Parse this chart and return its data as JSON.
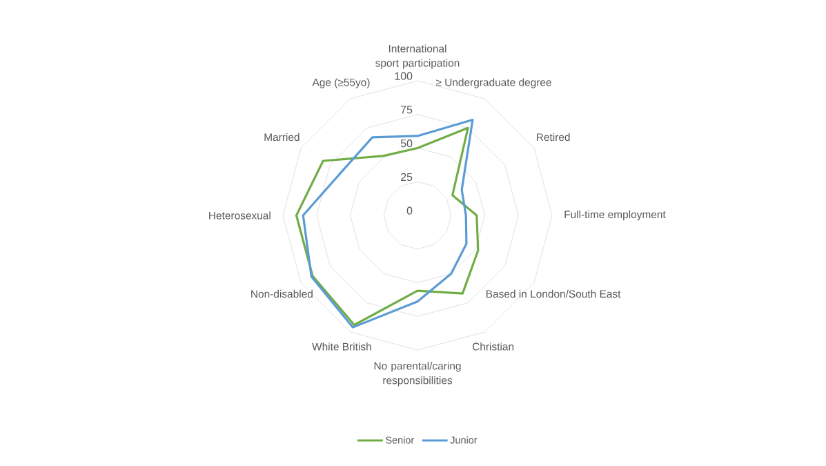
{
  "chart_data": {
    "type": "radar",
    "categories": [
      "International sport participation",
      "≥ Undergraduate degree",
      "Retired",
      "Full-time employment",
      "Based in London/South East",
      "Christian",
      "No parental/caring responsibilities",
      "White British",
      "Non-disabled",
      "Heterosexual",
      "Married",
      "Age (≥55yo)"
    ],
    "series": [
      {
        "name": "Senior",
        "color": "#70ad47",
        "values": [
          50,
          75,
          30,
          44,
          52,
          67,
          56,
          94,
          90,
          90,
          81,
          51
        ]
      },
      {
        "name": "Junior",
        "color": "#5b9bd5",
        "values": [
          59,
          82,
          38,
          36,
          42,
          50,
          64,
          96,
          91,
          85,
          65,
          67
        ]
      }
    ],
    "ylim": [
      0,
      100
    ],
    "yticks": [
      0,
      25,
      50,
      75,
      100
    ],
    "grid": true,
    "legend": "bottom"
  }
}
